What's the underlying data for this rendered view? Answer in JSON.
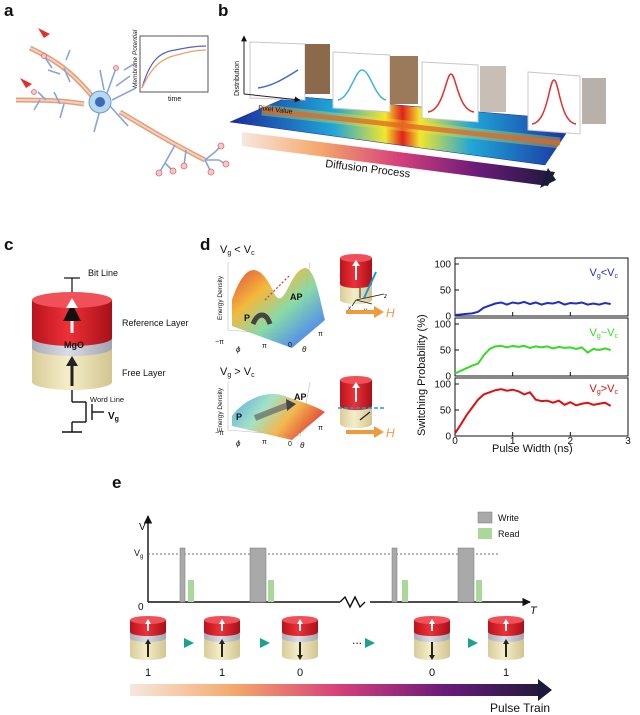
{
  "panels": {
    "a": {
      "label": "a",
      "inset": {
        "ylabel": "Membrane Potential",
        "xlabel": "time"
      }
    },
    "b": {
      "label": "b",
      "distribution_label": "Distribution",
      "pixel_value_label": "Pixel Value",
      "diffusion_label": "Diffusion Process"
    },
    "c": {
      "label": "c",
      "bit_line": "Bit Line",
      "reference_layer": "Reference  Layer",
      "mgo": "MgO",
      "free_layer": "Free Layer",
      "word_line": "Word Line",
      "vg": "V",
      "vg_sub": "g"
    },
    "d": {
      "label": "d",
      "top_condition": "V",
      "top_condition_sub1": "g",
      "top_condition_op": " < V",
      "top_condition_sub2": "c",
      "bottom_condition": "V",
      "bottom_condition_sub1": "g",
      "bottom_condition_op": " > V",
      "bottom_condition_sub2": "c",
      "energy_density": "Energy Density",
      "state_p": "P",
      "state_ap": "AP",
      "field": "H",
      "pi": "π",
      "neg_pi": "−π",
      "zero": "0",
      "phi": "ϕ",
      "theta": "θ",
      "axes_xyz": [
        "x",
        "y",
        "z"
      ]
    },
    "e": {
      "label": "e",
      "v_axis": "V",
      "vg_axis": "V",
      "vg_axis_sub": "g",
      "origin": "0",
      "t_axis": "T",
      "legend_write": "Write",
      "legend_read": "Read",
      "states": [
        "1",
        "1",
        "0",
        "0",
        "1"
      ],
      "ellipsis": "...",
      "pulse_train": "Pulse Train"
    }
  },
  "chart_data": {
    "type": "line",
    "xlabel": "Pulse Width (ns)",
    "ylabel": "Switching Probability (%)",
    "xlim": [
      0,
      3
    ],
    "ylim": [
      0,
      100
    ],
    "xticks": [
      0,
      1,
      2,
      3
    ],
    "yticks": [
      0,
      50,
      100
    ],
    "x": [
      0,
      0.1,
      0.2,
      0.3,
      0.4,
      0.5,
      0.6,
      0.7,
      0.8,
      0.9,
      1.0,
      1.1,
      1.2,
      1.3,
      1.4,
      1.5,
      1.6,
      1.7,
      1.8,
      1.9,
      2.0,
      2.1,
      2.2,
      2.3,
      2.4,
      2.5,
      2.6,
      2.7
    ],
    "series": [
      {
        "name_parts": [
          "V",
          "g",
          "<V",
          "c"
        ],
        "color": "#1f2fbf",
        "values": [
          2,
          3,
          4,
          5,
          8,
          16,
          20,
          24,
          26,
          22,
          26,
          24,
          27,
          23,
          26,
          22,
          25,
          24,
          27,
          22,
          25,
          24,
          26,
          22,
          24,
          22,
          25,
          23
        ]
      },
      {
        "name_parts": [
          "V",
          "g",
          "~V",
          "c"
        ],
        "color": "#33dd22",
        "values": [
          5,
          10,
          15,
          20,
          24,
          40,
          52,
          57,
          58,
          55,
          58,
          56,
          58,
          54,
          57,
          55,
          57,
          53,
          56,
          54,
          55,
          52,
          55,
          45,
          52,
          50,
          53,
          50
        ]
      },
      {
        "name_parts": [
          "V",
          "g",
          ">V",
          "c"
        ],
        "color": "#dd1111",
        "values": [
          5,
          22,
          40,
          55,
          70,
          80,
          84,
          88,
          90,
          87,
          89,
          86,
          80,
          84,
          70,
          67,
          68,
          64,
          68,
          60,
          65,
          59,
          62,
          64,
          60,
          62,
          64,
          58
        ]
      }
    ]
  },
  "colors": {
    "red": "#e0202a",
    "mgo": "#c8ccd6",
    "free": "#ede4b8",
    "orange": "#f09a3c",
    "teal": "#1aa38a",
    "write": "#a9a9a9",
    "read": "#a9d89a"
  }
}
